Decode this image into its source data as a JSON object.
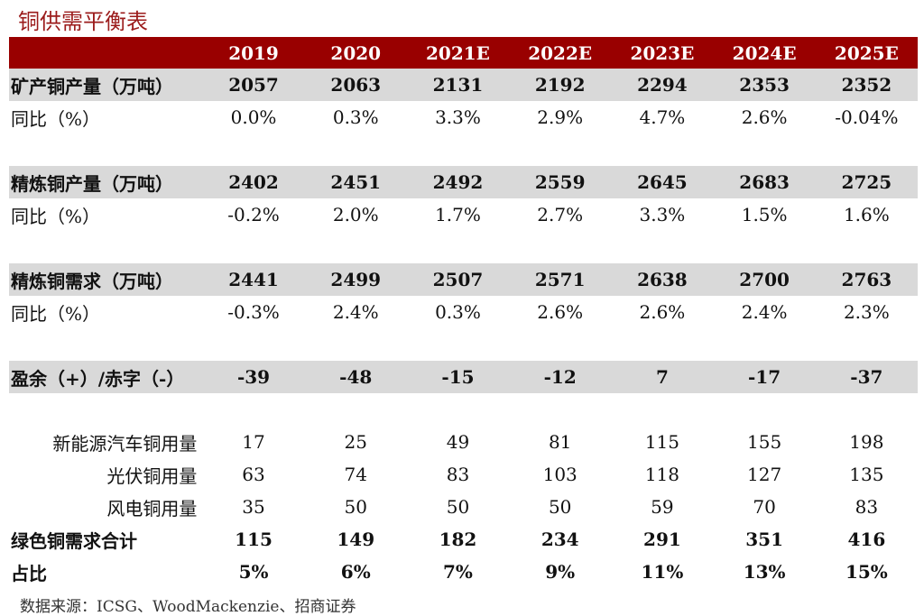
{
  "title": "铜供需平衡表",
  "columns": [
    "2019",
    "2020",
    "2021E",
    "2022E",
    "2023E",
    "2024E",
    "2025E"
  ],
  "rows": [
    {
      "type": "main",
      "label": "矿产铜产量（万吨）",
      "values": [
        "2057",
        "2063",
        "2131",
        "2192",
        "2294",
        "2353",
        "2352"
      ]
    },
    {
      "type": "yoy",
      "label": "同比（%）",
      "values": [
        "0.0%",
        "0.3%",
        "3.3%",
        "2.9%",
        "4.7%",
        "2.6%",
        "-0.04%"
      ]
    },
    {
      "type": "blank"
    },
    {
      "type": "main",
      "label": "精炼铜产量（万吨）",
      "values": [
        "2402",
        "2451",
        "2492",
        "2559",
        "2645",
        "2683",
        "2725"
      ]
    },
    {
      "type": "yoy",
      "label": "同比（%）",
      "values": [
        "-0.2%",
        "2.0%",
        "1.7%",
        "2.7%",
        "3.3%",
        "1.5%",
        "1.6%"
      ]
    },
    {
      "type": "blank"
    },
    {
      "type": "main",
      "label": "精炼铜需求（万吨）",
      "values": [
        "2441",
        "2499",
        "2507",
        "2571",
        "2638",
        "2700",
        "2763"
      ]
    },
    {
      "type": "yoy",
      "label": "同比（%）",
      "values": [
        "-0.3%",
        "2.4%",
        "0.3%",
        "2.6%",
        "2.6%",
        "2.4%",
        "2.3%"
      ]
    },
    {
      "type": "blank"
    },
    {
      "type": "main",
      "label": "盈余（+）/赤字（-）",
      "values": [
        "-39",
        "-48",
        "-15",
        "-12",
        "7",
        "-17",
        "-37"
      ]
    },
    {
      "type": "blank"
    },
    {
      "type": "sub",
      "label": "新能源汽车铜用量",
      "values": [
        "17",
        "25",
        "49",
        "81",
        "115",
        "155",
        "198"
      ]
    },
    {
      "type": "sub",
      "label": "光伏铜用量",
      "values": [
        "63",
        "74",
        "83",
        "103",
        "118",
        "127",
        "135"
      ]
    },
    {
      "type": "sub",
      "label": "风电铜用量",
      "values": [
        "35",
        "50",
        "50",
        "50",
        "59",
        "70",
        "83"
      ]
    },
    {
      "type": "subb",
      "label": "绿色铜需求合计",
      "values": [
        "115",
        "149",
        "182",
        "234",
        "291",
        "351",
        "416"
      ]
    },
    {
      "type": "subb",
      "label": "占比",
      "values": [
        "5%",
        "6%",
        "7%",
        "9%",
        "11%",
        "13%",
        "15%"
      ]
    }
  ],
  "source": "数据来源：ICSG、WoodMackenzie、招商证券",
  "colors": {
    "header_bg": "#990000",
    "main_row_bg": "#d9d9d9",
    "title": "#9b1b1b"
  }
}
